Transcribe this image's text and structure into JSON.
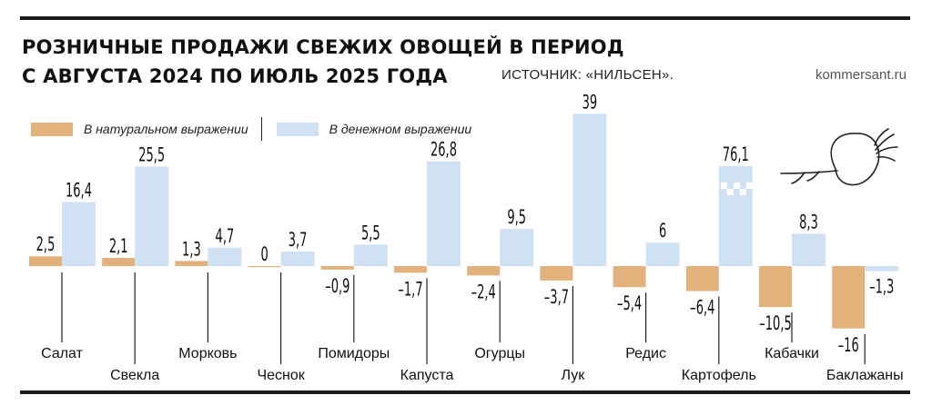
{
  "title": {
    "line1": "РОЗНИЧНЫЕ ПРОДАЖИ СВЕЖИХ ОВОЩЕЙ В ПЕРИОД",
    "line2": "С АВГУСТА 2024 ПО ИЮЛЬ 2025 ГОДА"
  },
  "source": "ИСТОЧНИК: «НИЛЬСЕН».",
  "site": "kommersant.ru",
  "colors": {
    "natural": "#e3b27c",
    "monetary": "#cfe1f2",
    "text": "#111111",
    "rule": "#1a1a1a"
  },
  "chart_data": {
    "type": "bar",
    "categories": [
      "Салат",
      "Свекла",
      "Морковь",
      "Чеснок",
      "Помидоры",
      "Капуста",
      "Огурцы",
      "Лук",
      "Редис",
      "Картофель",
      "Кабачки",
      "Баклажаны"
    ],
    "series": [
      {
        "name": "В натуральном выражении",
        "values": [
          2.5,
          2.1,
          1.3,
          0,
          -0.9,
          -1.7,
          -2.4,
          -3.7,
          -5.4,
          -6.4,
          -10.5,
          -16
        ],
        "labels": [
          "2,5",
          "2,1",
          "1,3",
          "0",
          "–0,9",
          "–1,7",
          "–2,4",
          "–3,7",
          "–5,4",
          "–6,4",
          "–10,5",
          "–16"
        ]
      },
      {
        "name": "В денежном выражении",
        "values": [
          16.4,
          25.5,
          4.7,
          3.7,
          5.5,
          26.8,
          9.5,
          39,
          6,
          76.1,
          8.3,
          -1.3
        ],
        "labels": [
          "16,4",
          "25,5",
          "4,7",
          "3,7",
          "5,5",
          "26,8",
          "9,5",
          "39",
          "6",
          "76,1",
          "8,3",
          "–1,3"
        ]
      }
    ],
    "xlabel": "",
    "ylabel": "",
    "grid": false,
    "legend_position": "top-left",
    "broken_bar": "Картофель"
  }
}
